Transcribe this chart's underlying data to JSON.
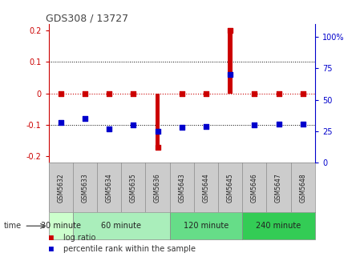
{
  "title": "GDS308 / 13727",
  "samples": [
    "GSM5632",
    "GSM5633",
    "GSM5634",
    "GSM5635",
    "GSM5636",
    "GSM5643",
    "GSM5644",
    "GSM5645",
    "GSM5646",
    "GSM5647",
    "GSM5648"
  ],
  "log_ratio": [
    0.0,
    0.0,
    0.0,
    0.0,
    -0.17,
    0.0,
    0.0,
    0.2,
    0.0,
    0.0,
    0.0
  ],
  "percentile_rank": [
    32,
    35,
    27,
    30,
    25,
    28,
    29,
    70,
    30,
    31,
    31
  ],
  "ylim_left": [
    -0.22,
    0.22
  ],
  "ylim_right": [
    0,
    110
  ],
  "yticks_left": [
    -0.2,
    -0.1,
    0.0,
    0.1,
    0.2
  ],
  "yticks_right": [
    0,
    25,
    50,
    75,
    100
  ],
  "ytick_labels_left": [
    "-0.2",
    "-0.1",
    "0",
    "0.1",
    "0.2"
  ],
  "ytick_labels_right": [
    "0",
    "25",
    "50",
    "75",
    "100%"
  ],
  "groups": [
    {
      "label": "30 minute",
      "start": 0,
      "end": 0,
      "color": "#ccffcc"
    },
    {
      "label": "60 minute",
      "start": 1,
      "end": 4,
      "color": "#aaeebb"
    },
    {
      "label": "120 minute",
      "start": 5,
      "end": 7,
      "color": "#66dd88"
    },
    {
      "label": "240 minute",
      "start": 8,
      "end": 10,
      "color": "#33cc55"
    }
  ],
  "bar_color": "#cc0000",
  "dot_color": "#0000cc",
  "axis_left_color": "#cc0000",
  "axis_right_color": "#0000cc",
  "zero_line_color": "#cc0000",
  "bg_color": "#ffffff",
  "sample_bg_color": "#cccccc",
  "legend_log_ratio_color": "#cc0000",
  "legend_percentile_color": "#0000cc",
  "bar_width": 0.18
}
